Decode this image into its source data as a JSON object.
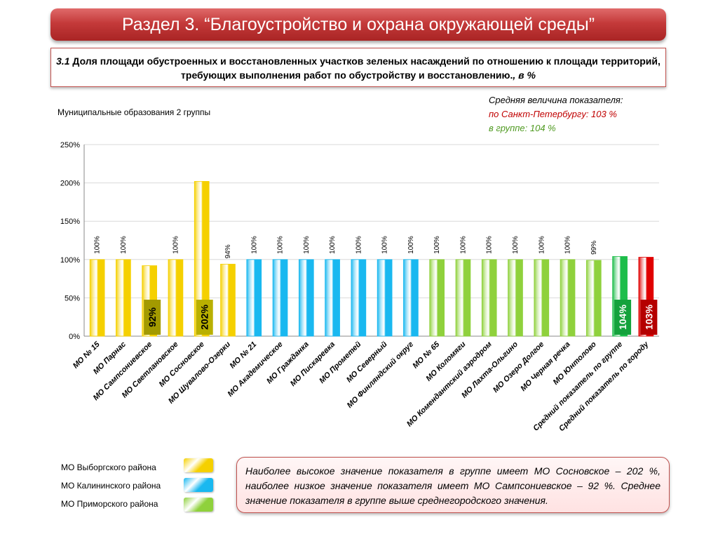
{
  "header": {
    "title": "Раздел 3. “Благоустройство и охрана окружающей среды”"
  },
  "subtitle": {
    "number": "3.1",
    "text": " Доля площади обустроенных и восстановленных участков зеленых насаждений по отношению к площади территорий, требующих выполнения работ по обустройству и восстановлению.",
    "unit": ", в %"
  },
  "group_label": "Муниципальные образования 2 группы",
  "average": {
    "heading": "Средняя величина показателя:",
    "city": "по Санкт-Петербургу:  103 %",
    "group": "в группе:  104 %"
  },
  "colors": {
    "yellow": "#f5d000",
    "blue": "#19b8f0",
    "green": "#8fd13c",
    "group_avg": "#1dbd4a",
    "city_avg": "#e00000",
    "title_red": "#c0504d"
  },
  "chart_data": {
    "type": "bar",
    "ylim": [
      0,
      250
    ],
    "yticks": [
      "0%",
      "50%",
      "100%",
      "150%",
      "200%",
      "250%"
    ],
    "categories": [
      "МО № 15",
      "МО Парнас",
      "МО Сампсониевское",
      "МО Светлановское",
      "МО Сосновское",
      "МО Шувалово-Озерки",
      "МО № 21",
      "МО Академическое",
      "МО Гражданка",
      "МО Пискаревка",
      "МО Прометей",
      "МО Северный",
      "МО Финляндский округ",
      "МО № 65",
      "МО Коломяги",
      "МО Комендантский аэродром",
      "МО Лахта-Ольгино",
      "МО Озеро Долгое",
      "МО Черная речка",
      "МО Юнтолово",
      "Средний показатель по группе",
      "Средний показатель по городу"
    ],
    "values": [
      100,
      100,
      92,
      100,
      202,
      94,
      100,
      100,
      100,
      100,
      100,
      100,
      100,
      100,
      100,
      100,
      100,
      100,
      100,
      99,
      104,
      103
    ],
    "labels": [
      "100%",
      "100%",
      "92%",
      "100%",
      "202%",
      "94%",
      "100%",
      "100%",
      "100%",
      "100%",
      "100%",
      "100%",
      "100%",
      "100%",
      "100%",
      "100%",
      "100%",
      "100%",
      "100%",
      "99%",
      "104%",
      "103%"
    ],
    "groups": [
      "yellow",
      "yellow",
      "yellow",
      "yellow",
      "yellow",
      "yellow",
      "blue",
      "blue",
      "blue",
      "blue",
      "blue",
      "blue",
      "blue",
      "green",
      "green",
      "green",
      "green",
      "green",
      "green",
      "green",
      "group_avg",
      "city_avg"
    ],
    "highlighted": [
      2,
      4,
      20,
      21
    ]
  },
  "legend": [
    {
      "label": "МО Выборгского района",
      "color": "yellow"
    },
    {
      "label": "МО Калининского района",
      "color": "blue"
    },
    {
      "label": "МО Приморского района",
      "color": "green"
    }
  ],
  "note": "Наиболее высокое значение показателя в группе имеет МО Сосновское – 202 %, наиболее низкое  значение показателя имеет МО Сампсониевское – 92 %. Среднее значение показателя в группе  выше среднегородского значения."
}
